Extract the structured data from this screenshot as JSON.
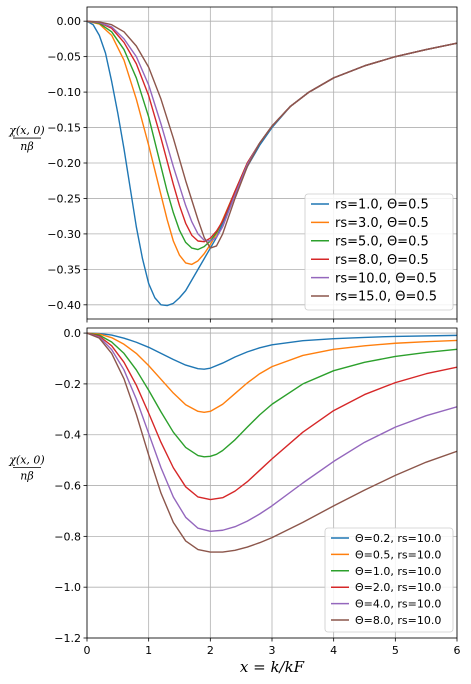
{
  "chart_data": [
    {
      "type": "line",
      "ylabel_num": "χ(x, 0)",
      "ylabel_den": "nβ",
      "xlabel": "",
      "xlim": [
        0,
        6
      ],
      "ylim": [
        -0.42,
        0.02
      ],
      "xticks": [
        0,
        1,
        2,
        3,
        4,
        5,
        6
      ],
      "xtick_labels": [],
      "yticks": [
        0.0,
        -0.05,
        -0.1,
        -0.15,
        -0.2,
        -0.25,
        -0.3,
        -0.35,
        -0.4
      ],
      "ytick_labels": [
        "0.00",
        "−0.05",
        "−0.10",
        "−0.15",
        "−0.20",
        "−0.25",
        "−0.30",
        "−0.35",
        "−0.40"
      ],
      "grid": true,
      "legend_position": "lower-right",
      "series": [
        {
          "name": "rs=1.0, Θ=0.5",
          "color": "#1f77b4",
          "x": [
            0,
            0.1,
            0.2,
            0.3,
            0.4,
            0.5,
            0.6,
            0.7,
            0.8,
            0.9,
            1.0,
            1.1,
            1.2,
            1.3,
            1.4,
            1.5,
            1.6,
            1.7,
            1.8,
            1.9,
            2.0,
            2.1,
            2.2,
            2.4,
            2.6,
            2.8,
            3.0,
            3.3,
            3.6,
            4.0,
            4.5,
            5.0,
            5.5,
            6.0
          ],
          "y": [
            0,
            -0.005,
            -0.02,
            -0.045,
            -0.085,
            -0.13,
            -0.18,
            -0.235,
            -0.29,
            -0.335,
            -0.37,
            -0.39,
            -0.4,
            -0.401,
            -0.398,
            -0.39,
            -0.38,
            -0.365,
            -0.35,
            -0.335,
            -0.32,
            -0.305,
            -0.285,
            -0.245,
            -0.205,
            -0.175,
            -0.15,
            -0.12,
            -0.1,
            -0.08,
            -0.063,
            -0.05,
            -0.04,
            -0.031
          ]
        },
        {
          "name": "rs=3.0, Θ=0.5",
          "color": "#ff7f0e",
          "x": [
            0,
            0.2,
            0.4,
            0.6,
            0.8,
            1.0,
            1.1,
            1.2,
            1.3,
            1.4,
            1.5,
            1.6,
            1.7,
            1.8,
            1.9,
            2.0,
            2.1,
            2.2,
            2.4,
            2.6,
            2.8,
            3.0,
            3.3,
            3.6,
            4.0,
            4.5,
            5.0,
            5.5,
            6.0
          ],
          "y": [
            0,
            -0.004,
            -0.02,
            -0.055,
            -0.11,
            -0.175,
            -0.21,
            -0.245,
            -0.28,
            -0.31,
            -0.33,
            -0.341,
            -0.343,
            -0.338,
            -0.328,
            -0.315,
            -0.3,
            -0.28,
            -0.24,
            -0.2,
            -0.172,
            -0.148,
            -0.12,
            -0.1,
            -0.08,
            -0.063,
            -0.05,
            -0.04,
            -0.031
          ]
        },
        {
          "name": "rs=5.0, Θ=0.5",
          "color": "#2ca02c",
          "x": [
            0,
            0.2,
            0.4,
            0.6,
            0.8,
            1.0,
            1.2,
            1.3,
            1.4,
            1.5,
            1.6,
            1.7,
            1.8,
            1.9,
            2.0,
            2.1,
            2.2,
            2.4,
            2.6,
            2.8,
            3.0,
            3.3,
            3.6,
            4.0,
            4.5,
            5.0,
            5.5,
            6.0
          ],
          "y": [
            0,
            -0.003,
            -0.015,
            -0.04,
            -0.08,
            -0.135,
            -0.205,
            -0.24,
            -0.27,
            -0.295,
            -0.312,
            -0.32,
            -0.322,
            -0.318,
            -0.31,
            -0.298,
            -0.282,
            -0.24,
            -0.2,
            -0.172,
            -0.148,
            -0.12,
            -0.1,
            -0.08,
            -0.063,
            -0.05,
            -0.04,
            -0.031
          ]
        },
        {
          "name": "rs=8.0, Θ=0.5",
          "color": "#d62728",
          "x": [
            0,
            0.2,
            0.4,
            0.6,
            0.8,
            1.0,
            1.2,
            1.4,
            1.5,
            1.6,
            1.7,
            1.8,
            1.9,
            2.0,
            2.1,
            2.2,
            2.4,
            2.6,
            2.8,
            3.0,
            3.3,
            3.6,
            4.0,
            4.5,
            5.0,
            5.5,
            6.0
          ],
          "y": [
            0,
            -0.002,
            -0.01,
            -0.03,
            -0.06,
            -0.105,
            -0.165,
            -0.23,
            -0.26,
            -0.285,
            -0.302,
            -0.31,
            -0.311,
            -0.306,
            -0.296,
            -0.282,
            -0.24,
            -0.2,
            -0.172,
            -0.148,
            -0.12,
            -0.1,
            -0.08,
            -0.063,
            -0.05,
            -0.04,
            -0.031
          ]
        },
        {
          "name": "rs=10.0, Θ=0.5",
          "color": "#9467bd",
          "x": [
            0,
            0.2,
            0.4,
            0.6,
            0.8,
            1.0,
            1.2,
            1.4,
            1.6,
            1.7,
            1.8,
            1.9,
            2.0,
            2.1,
            2.2,
            2.4,
            2.6,
            2.8,
            3.0,
            3.3,
            3.6,
            4.0,
            4.5,
            5.0,
            5.5,
            6.0
          ],
          "y": [
            0,
            -0.002,
            -0.008,
            -0.025,
            -0.05,
            -0.09,
            -0.145,
            -0.205,
            -0.26,
            -0.283,
            -0.3,
            -0.309,
            -0.31,
            -0.305,
            -0.29,
            -0.245,
            -0.202,
            -0.172,
            -0.148,
            -0.12,
            -0.1,
            -0.08,
            -0.063,
            -0.05,
            -0.04,
            -0.031
          ]
        },
        {
          "name": "rs=15.0, Θ=0.5",
          "color": "#8c564b",
          "x": [
            0,
            0.2,
            0.4,
            0.6,
            0.8,
            1.0,
            1.2,
            1.4,
            1.6,
            1.8,
            1.9,
            2.0,
            2.1,
            2.2,
            2.4,
            2.6,
            2.8,
            3.0,
            3.3,
            3.6,
            4.0,
            4.5,
            5.0,
            5.5,
            6.0
          ],
          "y": [
            0,
            -0.001,
            -0.005,
            -0.015,
            -0.035,
            -0.065,
            -0.11,
            -0.165,
            -0.225,
            -0.28,
            -0.305,
            -0.32,
            -0.317,
            -0.3,
            -0.25,
            -0.205,
            -0.172,
            -0.148,
            -0.12,
            -0.1,
            -0.08,
            -0.063,
            -0.05,
            -0.04,
            -0.031
          ]
        }
      ]
    },
    {
      "type": "line",
      "ylabel_num": "χ(x, 0)",
      "ylabel_den": "nβ",
      "xlabel": "x = k/kF",
      "xlim": [
        0,
        6
      ],
      "ylim": [
        -1.2,
        0.02
      ],
      "xticks": [
        0,
        1,
        2,
        3,
        4,
        5,
        6
      ],
      "xtick_labels": [
        "0",
        "1",
        "2",
        "3",
        "4",
        "5",
        "6"
      ],
      "yticks": [
        0.0,
        -0.2,
        -0.4,
        -0.6,
        -0.8,
        -1.0,
        -1.2
      ],
      "ytick_labels": [
        "0.0",
        "−0.2",
        "−0.4",
        "−0.6",
        "−0.8",
        "−1.0",
        "−1.2"
      ],
      "grid": true,
      "legend_position": "lower-right",
      "series": [
        {
          "name": "Θ=0.2, rs=10.0",
          "color": "#1f77b4",
          "x": [
            0,
            0.2,
            0.4,
            0.6,
            0.8,
            1.0,
            1.2,
            1.4,
            1.6,
            1.8,
            1.9,
            2.0,
            2.2,
            2.4,
            2.6,
            2.8,
            3.0,
            3.5,
            4.0,
            4.5,
            5.0,
            6.0
          ],
          "y": [
            0,
            -0.002,
            -0.008,
            -0.02,
            -0.036,
            -0.056,
            -0.08,
            -0.104,
            -0.126,
            -0.14,
            -0.142,
            -0.138,
            -0.118,
            -0.094,
            -0.074,
            -0.058,
            -0.046,
            -0.03,
            -0.022,
            -0.017,
            -0.013,
            -0.009
          ]
        },
        {
          "name": "Θ=0.5, rs=10.0",
          "color": "#ff7f0e",
          "x": [
            0,
            0.2,
            0.4,
            0.6,
            0.8,
            1.0,
            1.2,
            1.4,
            1.6,
            1.8,
            1.9,
            2.0,
            2.2,
            2.4,
            2.6,
            2.8,
            3.0,
            3.5,
            4.0,
            4.5,
            5.0,
            5.5,
            6.0
          ],
          "y": [
            0,
            -0.004,
            -0.018,
            -0.044,
            -0.08,
            -0.128,
            -0.182,
            -0.236,
            -0.282,
            -0.308,
            -0.312,
            -0.308,
            -0.28,
            -0.238,
            -0.196,
            -0.16,
            -0.132,
            -0.088,
            -0.064,
            -0.05,
            -0.04,
            -0.034,
            -0.029
          ]
        },
        {
          "name": "Θ=1.0, rs=10.0",
          "color": "#2ca02c",
          "x": [
            0,
            0.2,
            0.4,
            0.6,
            0.8,
            1.0,
            1.2,
            1.4,
            1.6,
            1.8,
            1.9,
            2.0,
            2.1,
            2.2,
            2.4,
            2.6,
            2.8,
            3.0,
            3.5,
            4.0,
            4.5,
            5.0,
            5.5,
            6.0
          ],
          "y": [
            0,
            -0.008,
            -0.035,
            -0.08,
            -0.145,
            -0.225,
            -0.31,
            -0.39,
            -0.45,
            -0.482,
            -0.487,
            -0.485,
            -0.477,
            -0.462,
            -0.42,
            -0.37,
            -0.322,
            -0.28,
            -0.2,
            -0.148,
            -0.115,
            -0.092,
            -0.076,
            -0.064
          ]
        },
        {
          "name": "Θ=2.0, rs=10.0",
          "color": "#d62728",
          "x": [
            0,
            0.2,
            0.4,
            0.6,
            0.8,
            1.0,
            1.2,
            1.4,
            1.6,
            1.8,
            2.0,
            2.2,
            2.4,
            2.6,
            2.8,
            3.0,
            3.5,
            4.0,
            4.5,
            5.0,
            5.5,
            6.0
          ],
          "y": [
            0,
            -0.012,
            -0.05,
            -0.115,
            -0.205,
            -0.315,
            -0.43,
            -0.53,
            -0.605,
            -0.645,
            -0.655,
            -0.648,
            -0.622,
            -0.585,
            -0.54,
            -0.495,
            -0.39,
            -0.305,
            -0.242,
            -0.195,
            -0.16,
            -0.134
          ]
        },
        {
          "name": "Θ=4.0, rs=10.0",
          "color": "#9467bd",
          "x": [
            0,
            0.2,
            0.4,
            0.6,
            0.8,
            1.0,
            1.2,
            1.4,
            1.6,
            1.8,
            2.0,
            2.2,
            2.4,
            2.6,
            2.8,
            3.0,
            3.5,
            4.0,
            4.5,
            5.0,
            5.5,
            6.0
          ],
          "y": [
            0,
            -0.016,
            -0.065,
            -0.145,
            -0.26,
            -0.395,
            -0.53,
            -0.645,
            -0.725,
            -0.768,
            -0.78,
            -0.776,
            -0.762,
            -0.74,
            -0.712,
            -0.68,
            -0.59,
            -0.505,
            -0.43,
            -0.37,
            -0.325,
            -0.29
          ]
        },
        {
          "name": "Θ=8.0, rs=10.0",
          "color": "#8c564b",
          "x": [
            0,
            0.2,
            0.4,
            0.6,
            0.8,
            1.0,
            1.2,
            1.4,
            1.6,
            1.8,
            2.0,
            2.2,
            2.4,
            2.6,
            2.8,
            3.0,
            3.5,
            4.0,
            4.5,
            5.0,
            5.5,
            6.0
          ],
          "y": [
            0,
            -0.02,
            -0.08,
            -0.18,
            -0.32,
            -0.48,
            -0.63,
            -0.745,
            -0.818,
            -0.852,
            -0.862,
            -0.862,
            -0.855,
            -0.842,
            -0.825,
            -0.805,
            -0.745,
            -0.68,
            -0.618,
            -0.56,
            -0.508,
            -0.465
          ]
        }
      ]
    }
  ]
}
